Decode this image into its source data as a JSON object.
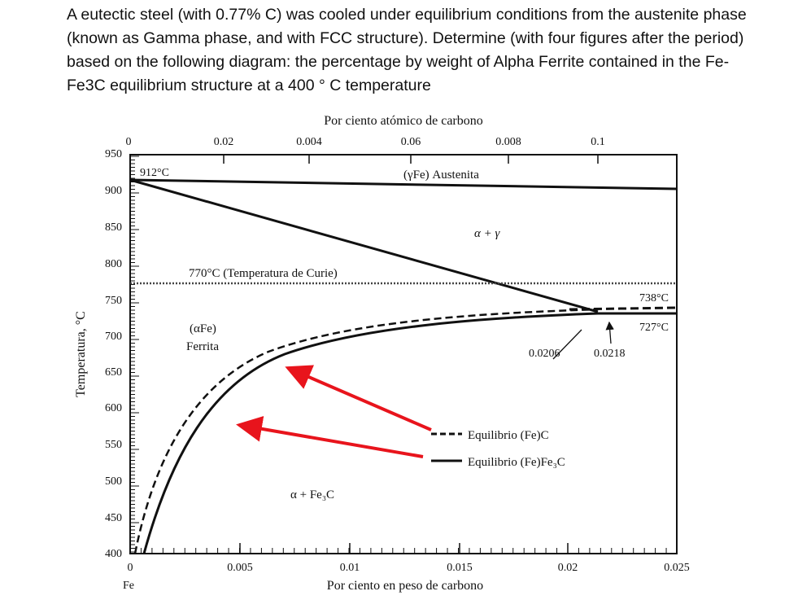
{
  "question": {
    "line1": "A eutectic steel (with 0.77% C) was cooled under equilibrium conditions from the austenite phase",
    "line2": "(known as Gamma phase, and with FCC structure). Determine (with four figures after the period)",
    "line3": "based on the following diagram: the percentage by weight of Alpha Ferrite contained in the Fe-",
    "line4": "Fe3C equilibrium structure at a 400 ° C temperature"
  },
  "diagram": {
    "top_axis_title": "Por ciento atómico de carbono",
    "top_ticks": [
      "0",
      "0.02",
      "0.004",
      "0.06",
      "0.008",
      "0.1"
    ],
    "bottom_axis_title": "Por ciento en peso de carbono",
    "bottom_ticks": [
      "0",
      "0.005",
      "0.01",
      "0.015",
      "0.02",
      "0.025"
    ],
    "bottom_sublabel": "Fe",
    "y_axis_title": "Temperatura, °C",
    "y_ticks": [
      "950",
      "900",
      "850",
      "800",
      "750",
      "700",
      "650",
      "600",
      "550",
      "500",
      "450",
      "400"
    ],
    "labels": {
      "t912": "912°C",
      "austenite": "(γFe) Austenita",
      "alpha_gamma": "α + γ",
      "curie": "770°C (Temperatura de Curie)",
      "alpha_fe": "(αFe)",
      "ferrita": "Ferrita",
      "t738": "738°C",
      "t727": "727°C",
      "c0206": "0.0206",
      "c0218": "0.0218",
      "alpha_fe3c": "α + Fe₃C",
      "legend_dashed": "Equilibrio (Fe)C",
      "legend_solid": "Equilibrio (Fe)Fe₃C"
    },
    "colors": {
      "lines": "#111111",
      "arrows": "#e8141c",
      "curie_line": "#444444"
    }
  }
}
